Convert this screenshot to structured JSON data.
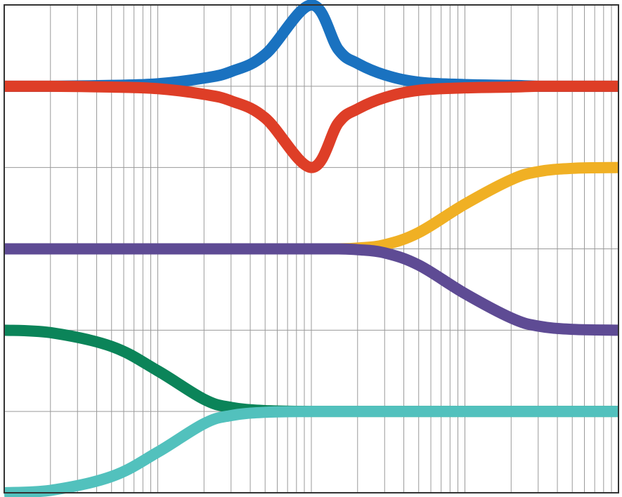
{
  "chart_data": {
    "type": "line",
    "title": "",
    "xlabel": "",
    "ylabel": "",
    "x_scale": "log",
    "xlim": [
      0.01,
      100
    ],
    "ylim": [
      -3,
      3
    ],
    "grid": true,
    "legend": "none",
    "x": [
      0.01,
      0.02,
      0.05,
      0.1,
      0.2,
      0.3,
      0.5,
      1,
      1.5,
      2,
      3,
      5,
      10,
      20,
      30,
      50,
      100
    ],
    "series": [
      {
        "color": "#1a72c0",
        "values": [
          2.0,
          2.0,
          2.01,
          2.03,
          2.1,
          2.18,
          2.39,
          3.0,
          2.45,
          2.28,
          2.14,
          2.05,
          2.02,
          2.01,
          2.0,
          2.0,
          2.0
        ]
      },
      {
        "color": "#de3e27",
        "values": [
          2.0,
          2.0,
          1.99,
          1.97,
          1.9,
          1.82,
          1.61,
          1.0,
          1.55,
          1.72,
          1.86,
          1.95,
          1.98,
          1.99,
          2.0,
          2.0,
          2.0
        ]
      },
      {
        "color": "#f0b024",
        "values": [
          0.0,
          0.0,
          0.0,
          0.0,
          0.0,
          0.0,
          0.0,
          0.0,
          0.0,
          0.01,
          0.05,
          0.2,
          0.55,
          0.85,
          0.95,
          0.99,
          1.0
        ]
      },
      {
        "color": "#5e4b94",
        "values": [
          0.0,
          0.0,
          0.0,
          0.0,
          0.0,
          0.0,
          0.0,
          0.0,
          0.0,
          -0.01,
          -0.05,
          -0.2,
          -0.55,
          -0.85,
          -0.95,
          -0.99,
          -1.0
        ]
      },
      {
        "color": "#0b8459",
        "values": [
          -1.0,
          -1.03,
          -1.2,
          -1.5,
          -1.85,
          -1.95,
          -1.99,
          -2.0,
          -2.0,
          -2.0,
          -2.0,
          -2.0,
          -2.0,
          -2.0,
          -2.0,
          -2.0,
          -2.0
        ]
      },
      {
        "color": "#52c1bd",
        "values": [
          -3.0,
          -2.97,
          -2.8,
          -2.5,
          -2.15,
          -2.05,
          -2.01,
          -2.0,
          -2.0,
          -2.0,
          -2.0,
          -2.0,
          -2.0,
          -2.0,
          -2.0,
          -2.0,
          -2.0
        ]
      }
    ]
  }
}
